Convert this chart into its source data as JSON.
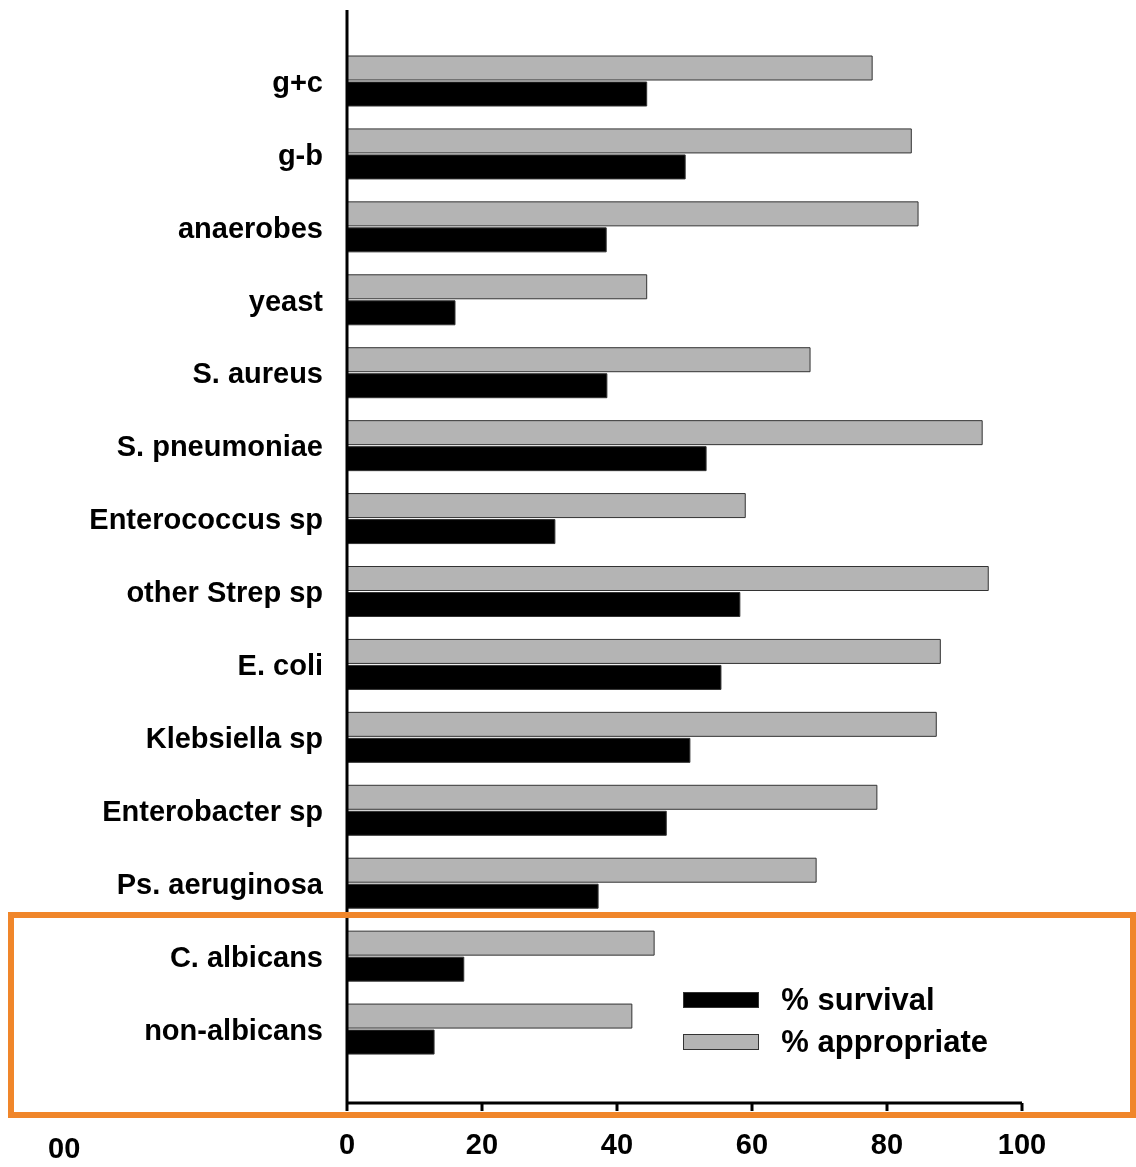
{
  "chart_data": {
    "type": "bar",
    "orientation": "horizontal",
    "categories": [
      "g+c",
      "g-b",
      "anaerobes",
      "yeast",
      "S. aureus",
      "S. pneumoniae",
      "Enterococcus sp",
      "other Strep sp",
      "E. coli",
      "Klebsiella sp",
      "Enterobacter sp",
      "Ps. aeruginosa",
      "C. albicans",
      "non-albicans"
    ],
    "series": [
      {
        "name": "% appropriate",
        "color": "#b4b4b4",
        "values": [
          77.8,
          83.6,
          84.6,
          44.4,
          68.6,
          94.1,
          59,
          95,
          87.9,
          87.3,
          78.5,
          69.5,
          45.5,
          42.2
        ]
      },
      {
        "name": "% survival",
        "color": "#000000",
        "values": [
          44.4,
          50.1,
          38.4,
          16,
          38.5,
          53.2,
          30.8,
          58.2,
          55.4,
          50.8,
          47.3,
          37.2,
          17.3,
          12.9
        ]
      }
    ],
    "xlim": [
      0,
      100
    ],
    "xticks": [
      0,
      20,
      40,
      60,
      80,
      100
    ],
    "legend": "bottom right",
    "grid": false,
    "annotations": [
      "00"
    ]
  }
}
